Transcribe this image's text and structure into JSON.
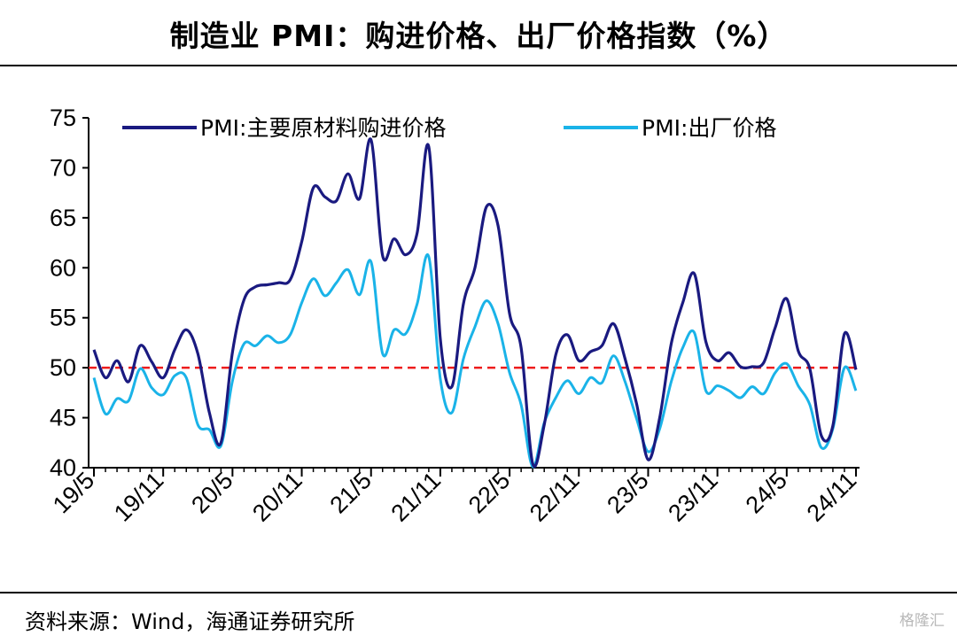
{
  "title": "制造业 PMI：购进价格、出厂价格指数（%）",
  "source": "资料来源：Wind，海通证券研究所",
  "watermark": "格隆汇",
  "chart_data": {
    "type": "line",
    "x_labels": [
      "19/5",
      "19/11",
      "20/5",
      "20/11",
      "21/5",
      "21/11",
      "22/5",
      "22/11",
      "23/5",
      "23/11",
      "24/5",
      "24/11"
    ],
    "x": [
      "19/5",
      "19/6",
      "19/7",
      "19/8",
      "19/9",
      "19/10",
      "19/11",
      "19/12",
      "20/1",
      "20/2",
      "20/3",
      "20/4",
      "20/5",
      "20/6",
      "20/7",
      "20/8",
      "20/9",
      "20/10",
      "20/11",
      "20/12",
      "21/1",
      "21/2",
      "21/3",
      "21/4",
      "21/5",
      "21/6",
      "21/7",
      "21/8",
      "21/9",
      "21/10",
      "21/11",
      "21/12",
      "22/1",
      "22/2",
      "22/3",
      "22/4",
      "22/5",
      "22/6",
      "22/7",
      "22/8",
      "22/9",
      "22/10",
      "22/11",
      "22/12",
      "23/1",
      "23/2",
      "23/3",
      "23/4",
      "23/5",
      "23/6",
      "23/7",
      "23/8",
      "23/9",
      "23/10",
      "23/11",
      "23/12",
      "24/1",
      "24/2",
      "24/3",
      "24/4",
      "24/5",
      "24/6",
      "24/7",
      "24/8",
      "24/9",
      "24/10",
      "24/11"
    ],
    "series": [
      {
        "name": "PMI:主要原材料购进价格",
        "color": "#1a1a80",
        "values": [
          51.8,
          49.0,
          50.7,
          48.6,
          52.2,
          50.6,
          49.0,
          51.8,
          53.8,
          51.4,
          45.5,
          42.5,
          51.6,
          56.8,
          58.1,
          58.3,
          58.5,
          58.8,
          62.6,
          68.0,
          67.1,
          66.7,
          69.4,
          66.9,
          72.8,
          61.2,
          62.9,
          61.3,
          63.5,
          72.1,
          52.9,
          48.1,
          56.4,
          60.0,
          66.1,
          64.2,
          55.4,
          52.0,
          40.4,
          44.3,
          51.3,
          53.3,
          50.7,
          51.6,
          52.2,
          54.4,
          50.9,
          46.4,
          40.8,
          45.0,
          52.4,
          56.5,
          59.4,
          52.6,
          50.7,
          51.5,
          50.1,
          50.1,
          50.5,
          54.0,
          56.9,
          51.7,
          49.9,
          43.2,
          44.2,
          53.4,
          49.8
        ]
      },
      {
        "name": "PMI:出厂价格",
        "color": "#1ab3e8",
        "values": [
          49.0,
          45.4,
          46.9,
          46.7,
          49.9,
          48.0,
          47.3,
          49.2,
          49.0,
          44.3,
          43.8,
          42.2,
          48.7,
          52.4,
          52.2,
          53.2,
          52.5,
          53.3,
          56.5,
          58.9,
          57.2,
          58.5,
          59.8,
          57.3,
          60.6,
          51.4,
          53.8,
          53.4,
          56.4,
          61.1,
          48.9,
          45.5,
          50.9,
          54.1,
          56.7,
          54.4,
          49.5,
          46.3,
          40.1,
          44.5,
          47.0,
          48.7,
          47.4,
          49.0,
          48.5,
          51.2,
          48.6,
          44.9,
          41.6,
          43.9,
          48.6,
          52.0,
          53.5,
          47.7,
          48.2,
          47.7,
          47.0,
          48.1,
          47.4,
          49.5,
          50.4,
          48.2,
          46.3,
          42.0,
          43.9,
          50.0,
          47.7
        ]
      }
    ],
    "reference_line": {
      "value": 50,
      "color": "#ee1c1c",
      "style": "dashed"
    },
    "y_ticks": [
      "40",
      "45",
      "50",
      "55",
      "60",
      "65",
      "70",
      "75"
    ],
    "ylim": [
      40,
      75
    ],
    "legend_position": "top",
    "grid": false
  }
}
